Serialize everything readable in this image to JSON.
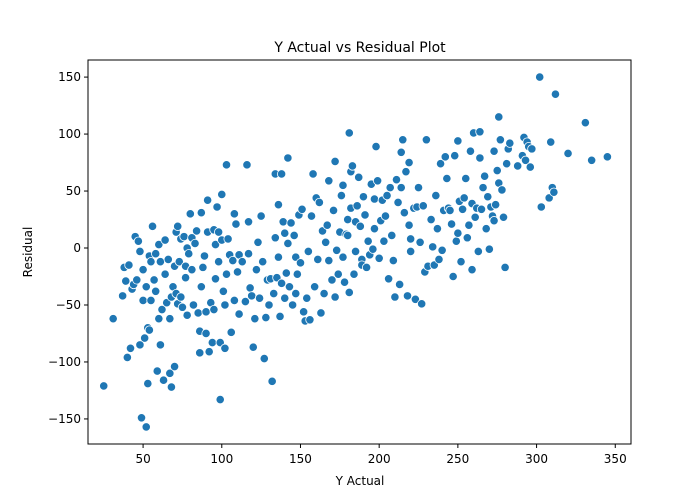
{
  "chart_data": {
    "type": "scatter",
    "title": "Y Actual vs Residual Plot",
    "xlabel": "Y Actual",
    "ylabel": "Residual",
    "xlim": [
      15,
      360
    ],
    "ylim": [
      -172,
      165
    ],
    "x_ticks": [
      50,
      100,
      150,
      200,
      250,
      300,
      350
    ],
    "y_ticks": [
      -150,
      -100,
      -50,
      0,
      50,
      100,
      150
    ],
    "x_tick_labels": [
      "50",
      "100",
      "150",
      "200",
      "250",
      "300",
      "350"
    ],
    "y_tick_labels": [
      "−150",
      "−100",
      "−50",
      "0",
      "50",
      "100",
      "150"
    ],
    "grid": false,
    "marker_color": "#1f77b4",
    "marker_edge_color": "#ffffff",
    "points": [
      [
        25,
        -121
      ],
      [
        31,
        -62
      ],
      [
        37,
        -42
      ],
      [
        38,
        -17
      ],
      [
        39,
        -29
      ],
      [
        40,
        -96
      ],
      [
        41,
        -15
      ],
      [
        42,
        -88
      ],
      [
        43,
        -36
      ],
      [
        44,
        -32
      ],
      [
        45,
        10
      ],
      [
        46,
        -28
      ],
      [
        47,
        6
      ],
      [
        48,
        -3
      ],
      [
        48,
        -85
      ],
      [
        49,
        -149
      ],
      [
        50,
        -46
      ],
      [
        50,
        -19
      ],
      [
        51,
        -79
      ],
      [
        52,
        -34
      ],
      [
        52,
        -157
      ],
      [
        53,
        -70
      ],
      [
        53,
        -119
      ],
      [
        54,
        -72
      ],
      [
        54,
        -7
      ],
      [
        55,
        -12
      ],
      [
        55,
        -46
      ],
      [
        56,
        19
      ],
      [
        57,
        -28
      ],
      [
        58,
        -38
      ],
      [
        58,
        -5
      ],
      [
        59,
        -108
      ],
      [
        60,
        3
      ],
      [
        60,
        -62
      ],
      [
        61,
        -85
      ],
      [
        61,
        -12
      ],
      [
        62,
        -54
      ],
      [
        63,
        -116
      ],
      [
        64,
        -23
      ],
      [
        64,
        7
      ],
      [
        65,
        -48
      ],
      [
        66,
        -10
      ],
      [
        67,
        -62
      ],
      [
        67,
        -110
      ],
      [
        68,
        -43
      ],
      [
        68,
        -122
      ],
      [
        69,
        -34
      ],
      [
        70,
        -104
      ],
      [
        70,
        -16
      ],
      [
        71,
        14
      ],
      [
        71,
        -40
      ],
      [
        72,
        -49
      ],
      [
        72,
        19
      ],
      [
        73,
        -12
      ],
      [
        74,
        -43
      ],
      [
        74,
        8
      ],
      [
        75,
        -52
      ],
      [
        76,
        10
      ],
      [
        77,
        -16
      ],
      [
        77,
        -26
      ],
      [
        78,
        0
      ],
      [
        78,
        -59
      ],
      [
        79,
        -5
      ],
      [
        80,
        30
      ],
      [
        81,
        9
      ],
      [
        81,
        -19
      ],
      [
        82,
        -50
      ],
      [
        83,
        4
      ],
      [
        84,
        15
      ],
      [
        85,
        -57
      ],
      [
        86,
        -73
      ],
      [
        86,
        -92
      ],
      [
        87,
        31
      ],
      [
        87,
        -34
      ],
      [
        88,
        -17
      ],
      [
        89,
        -7
      ],
      [
        90,
        -56
      ],
      [
        90,
        -75
      ],
      [
        91,
        42
      ],
      [
        91,
        14
      ],
      [
        92,
        -91
      ],
      [
        93,
        -48
      ],
      [
        94,
        -83
      ],
      [
        95,
        16
      ],
      [
        95,
        -54
      ],
      [
        96,
        3
      ],
      [
        96,
        -27
      ],
      [
        97,
        36
      ],
      [
        98,
        -12
      ],
      [
        98,
        14
      ],
      [
        99,
        -83
      ],
      [
        99,
        -133
      ],
      [
        100,
        47
      ],
      [
        100,
        7
      ],
      [
        101,
        -38
      ],
      [
        102,
        -88
      ],
      [
        102,
        -50
      ],
      [
        103,
        73
      ],
      [
        103,
        -23
      ],
      [
        104,
        8
      ],
      [
        105,
        -6
      ],
      [
        106,
        -74
      ],
      [
        107,
        -11
      ],
      [
        108,
        30
      ],
      [
        108,
        -46
      ],
      [
        109,
        21
      ],
      [
        110,
        -21
      ],
      [
        111,
        -6
      ],
      [
        111,
        -58
      ],
      [
        113,
        -12
      ],
      [
        115,
        -47
      ],
      [
        116,
        73
      ],
      [
        117,
        -5
      ],
      [
        117,
        23
      ],
      [
        118,
        -35
      ],
      [
        119,
        -42
      ],
      [
        120,
        -87
      ],
      [
        121,
        -62
      ],
      [
        122,
        -19
      ],
      [
        123,
        5
      ],
      [
        124,
        -44
      ],
      [
        125,
        28
      ],
      [
        126,
        -12
      ],
      [
        127,
        -97
      ],
      [
        128,
        -61
      ],
      [
        129,
        -28
      ],
      [
        130,
        -50
      ],
      [
        131,
        -27
      ],
      [
        132,
        -117
      ],
      [
        133,
        -40
      ],
      [
        134,
        9
      ],
      [
        134,
        65
      ],
      [
        135,
        -26
      ],
      [
        136,
        -8
      ],
      [
        136,
        38
      ],
      [
        137,
        -60
      ],
      [
        138,
        65
      ],
      [
        138,
        -31
      ],
      [
        139,
        23
      ],
      [
        140,
        -44
      ],
      [
        140,
        13
      ],
      [
        141,
        -22
      ],
      [
        142,
        4
      ],
      [
        142,
        79
      ],
      [
        143,
        -34
      ],
      [
        144,
        22
      ],
      [
        145,
        -50
      ],
      [
        146,
        11
      ],
      [
        147,
        -40
      ],
      [
        147,
        -8
      ],
      [
        148,
        -23
      ],
      [
        149,
        29
      ],
      [
        150,
        -13
      ],
      [
        151,
        34
      ],
      [
        152,
        -56
      ],
      [
        153,
        -64
      ],
      [
        154,
        -44
      ],
      [
        155,
        -3
      ],
      [
        156,
        -63
      ],
      [
        157,
        28
      ],
      [
        158,
        65
      ],
      [
        159,
        -34
      ],
      [
        160,
        44
      ],
      [
        161,
        -10
      ],
      [
        162,
        40
      ],
      [
        163,
        -57
      ],
      [
        164,
        15
      ],
      [
        165,
        -40
      ],
      [
        166,
        5
      ],
      [
        167,
        20
      ],
      [
        168,
        -11
      ],
      [
        168,
        59
      ],
      [
        170,
        -28
      ],
      [
        171,
        33
      ],
      [
        172,
        -43
      ],
      [
        172,
        76
      ],
      [
        173,
        -2
      ],
      [
        174,
        -23
      ],
      [
        175,
        14
      ],
      [
        176,
        46
      ],
      [
        177,
        55
      ],
      [
        177,
        -8
      ],
      [
        178,
        -30
      ],
      [
        179,
        12
      ],
      [
        180,
        25
      ],
      [
        180,
        11
      ],
      [
        181,
        101
      ],
      [
        181,
        -39
      ],
      [
        182,
        67
      ],
      [
        182,
        35
      ],
      [
        183,
        72
      ],
      [
        184,
        -23
      ],
      [
        185,
        23
      ],
      [
        185,
        -3
      ],
      [
        186,
        37
      ],
      [
        187,
        62
      ],
      [
        188,
        19
      ],
      [
        189,
        -10
      ],
      [
        189,
        -15
      ],
      [
        190,
        45
      ],
      [
        191,
        29
      ],
      [
        192,
        -17
      ],
      [
        193,
        6
      ],
      [
        194,
        -6
      ],
      [
        195,
        56
      ],
      [
        196,
        -1
      ],
      [
        197,
        43
      ],
      [
        197,
        17
      ],
      [
        198,
        89
      ],
      [
        199,
        59
      ],
      [
        200,
        -9
      ],
      [
        201,
        24
      ],
      [
        202,
        42
      ],
      [
        203,
        6
      ],
      [
        204,
        28
      ],
      [
        205,
        46
      ],
      [
        206,
        -27
      ],
      [
        207,
        53
      ],
      [
        208,
        11
      ],
      [
        209,
        -11
      ],
      [
        210,
        -43
      ],
      [
        211,
        60
      ],
      [
        212,
        40
      ],
      [
        213,
        -32
      ],
      [
        214,
        53
      ],
      [
        214,
        84
      ],
      [
        215,
        95
      ],
      [
        216,
        31
      ],
      [
        217,
        67
      ],
      [
        218,
        -42
      ],
      [
        219,
        75
      ],
      [
        219,
        20
      ],
      [
        220,
        -3
      ],
      [
        220,
        8
      ],
      [
        222,
        35
      ],
      [
        223,
        -45
      ],
      [
        224,
        36
      ],
      [
        225,
        53
      ],
      [
        226,
        5
      ],
      [
        227,
        -49
      ],
      [
        228,
        37
      ],
      [
        229,
        -21
      ],
      [
        230,
        95
      ],
      [
        231,
        -16
      ],
      [
        233,
        25
      ],
      [
        234,
        1
      ],
      [
        235,
        -15
      ],
      [
        236,
        46
      ],
      [
        237,
        17
      ],
      [
        238,
        -10
      ],
      [
        239,
        74
      ],
      [
        240,
        -2
      ],
      [
        241,
        33
      ],
      [
        242,
        80
      ],
      [
        243,
        61
      ],
      [
        244,
        35
      ],
      [
        245,
        33
      ],
      [
        246,
        21
      ],
      [
        247,
        -25
      ],
      [
        248,
        81
      ],
      [
        249,
        6
      ],
      [
        250,
        94
      ],
      [
        250,
        13
      ],
      [
        251,
        41
      ],
      [
        252,
        -12
      ],
      [
        253,
        34
      ],
      [
        254,
        44
      ],
      [
        255,
        61
      ],
      [
        256,
        9
      ],
      [
        257,
        20
      ],
      [
        258,
        85
      ],
      [
        259,
        39
      ],
      [
        259,
        -19
      ],
      [
        260,
        101
      ],
      [
        261,
        27
      ],
      [
        262,
        35
      ],
      [
        263,
        -3
      ],
      [
        264,
        79
      ],
      [
        264,
        102
      ],
      [
        265,
        34
      ],
      [
        266,
        53
      ],
      [
        267,
        63
      ],
      [
        268,
        17
      ],
      [
        269,
        45
      ],
      [
        270,
        -1
      ],
      [
        271,
        36
      ],
      [
        272,
        28
      ],
      [
        273,
        24
      ],
      [
        273,
        85
      ],
      [
        274,
        38
      ],
      [
        275,
        68
      ],
      [
        276,
        57
      ],
      [
        276,
        115
      ],
      [
        277,
        95
      ],
      [
        278,
        51
      ],
      [
        279,
        27
      ],
      [
        280,
        -17
      ],
      [
        281,
        74
      ],
      [
        282,
        87
      ],
      [
        283,
        92
      ],
      [
        288,
        72
      ],
      [
        291,
        81
      ],
      [
        292,
        97
      ],
      [
        293,
        77
      ],
      [
        294,
        93
      ],
      [
        295,
        89
      ],
      [
        296,
        71
      ],
      [
        297,
        87
      ],
      [
        302,
        150
      ],
      [
        303,
        36
      ],
      [
        308,
        44
      ],
      [
        309,
        93
      ],
      [
        310,
        53
      ],
      [
        311,
        49
      ],
      [
        312,
        135
      ],
      [
        320,
        83
      ],
      [
        331,
        110
      ],
      [
        335,
        77
      ],
      [
        345,
        80
      ]
    ]
  }
}
